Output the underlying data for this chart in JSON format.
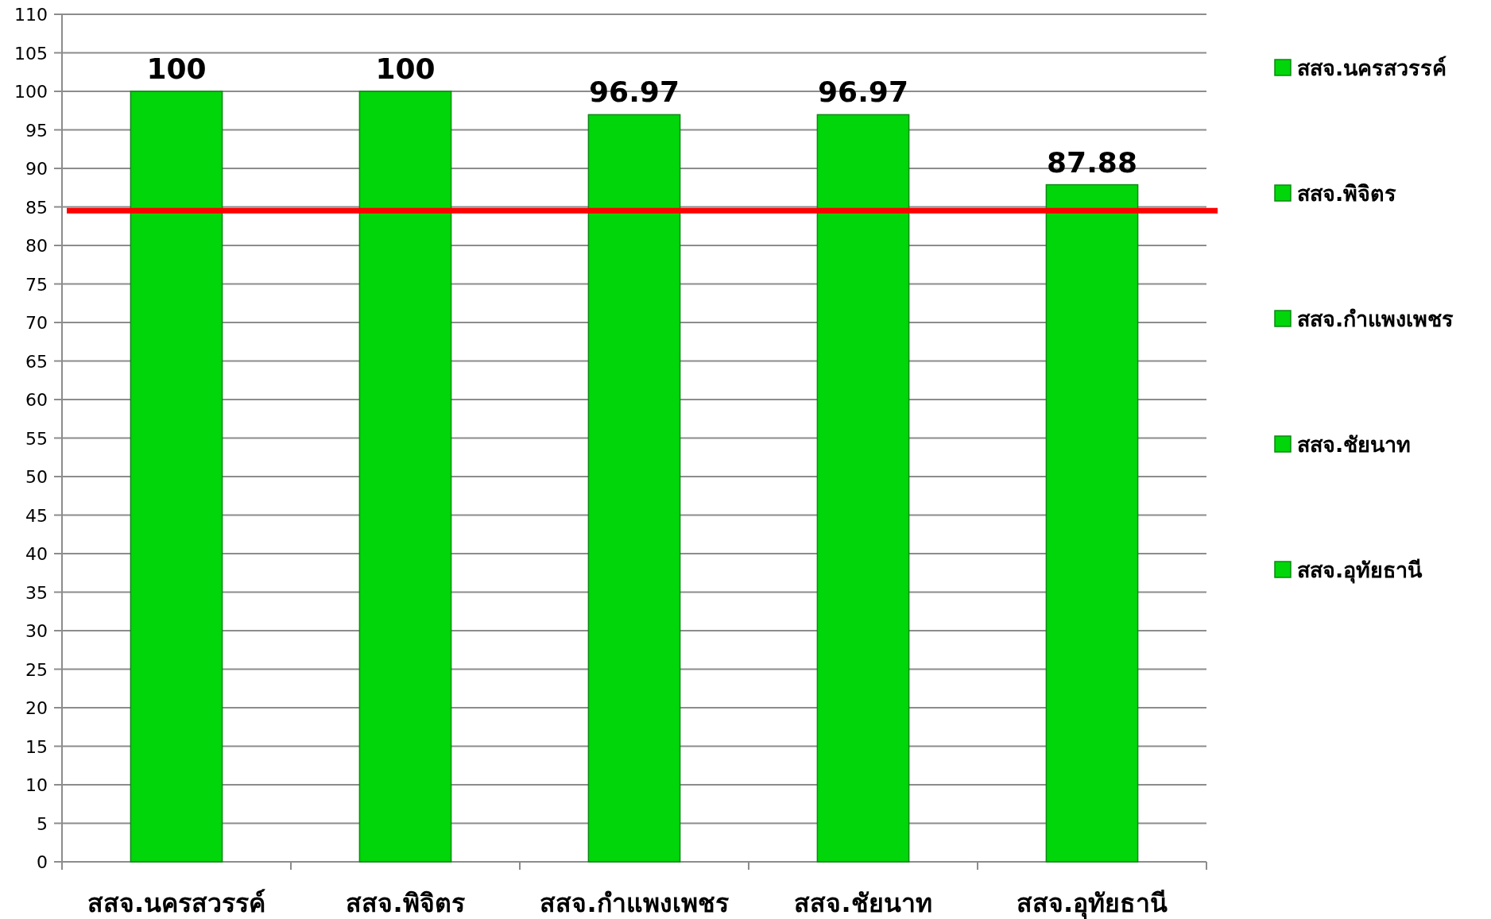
{
  "chart_data": {
    "type": "bar",
    "categories": [
      "สสจ.นครสวรรค์",
      "สสจ.พิจิตร",
      "สสจ.กำแพงเพชร",
      "สสจ.ชัยนาท",
      "สสจ.อุทัยธานี"
    ],
    "series": [
      {
        "name": "สสจ.นครสวรรค์",
        "color": "#00d60a",
        "values": [
          100,
          null,
          null,
          null,
          null
        ]
      },
      {
        "name": "สสจ.พิจิตร",
        "color": "#00d60a",
        "values": [
          null,
          100,
          null,
          null,
          null
        ]
      },
      {
        "name": "สสจ.กำแพงเพชร",
        "color": "#00d60a",
        "values": [
          null,
          null,
          96.97,
          null,
          null
        ]
      },
      {
        "name": "สสจ.ชัยนาท",
        "color": "#00d60a",
        "values": [
          null,
          null,
          null,
          96.97,
          null
        ]
      },
      {
        "name": "สสจ.อุทัยธานี",
        "color": "#00d60a",
        "values": [
          null,
          null,
          null,
          null,
          87.88
        ]
      }
    ],
    "ylim": [
      0,
      110
    ],
    "yticks": [
      0,
      5,
      10,
      15,
      20,
      25,
      30,
      35,
      40,
      45,
      50,
      55,
      60,
      65,
      70,
      75,
      80,
      85,
      90,
      95,
      100,
      105,
      110
    ],
    "grid": "y",
    "legend": "right",
    "data_labels": true,
    "ref_lines": [
      {
        "axis": "y",
        "value": 84.5,
        "color": "#ff0000"
      }
    ]
  }
}
